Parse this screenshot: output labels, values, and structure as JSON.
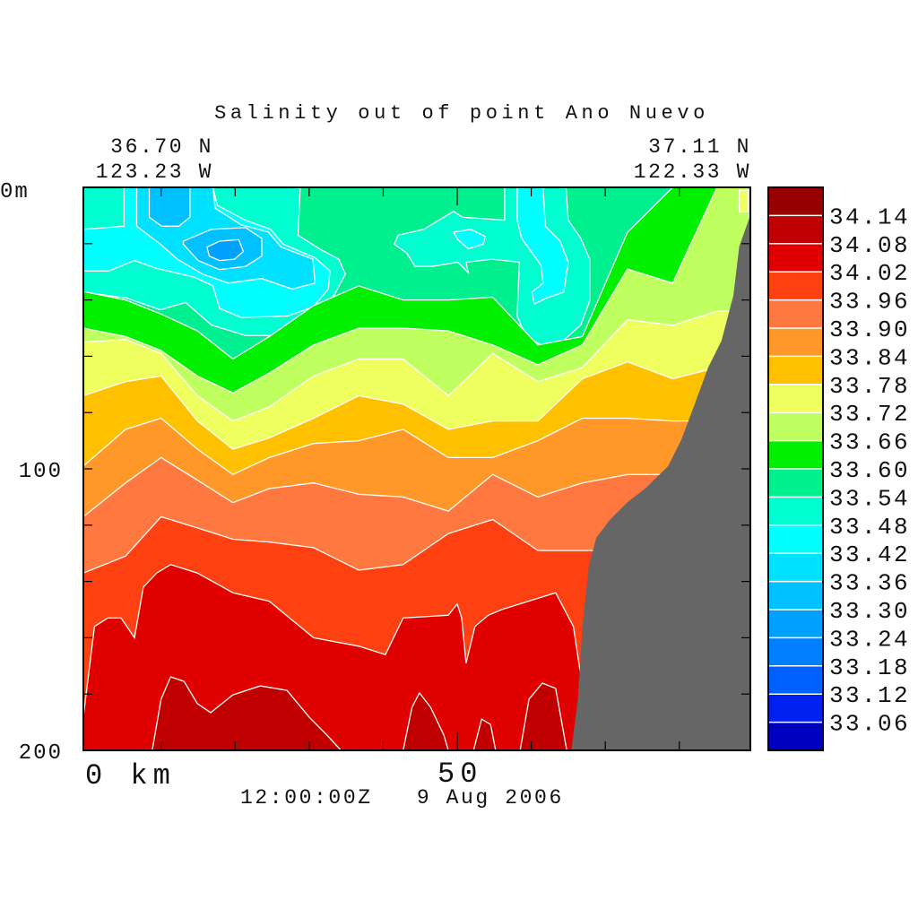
{
  "chart_data": {
    "type": "contour",
    "title": "Salinity out of point Ano Nuevo",
    "corner_left": {
      "lat": "36.70 N",
      "lon": "123.23 W"
    },
    "corner_right": {
      "lat": "37.11 N",
      "lon": "122.33 W"
    },
    "y_axis": {
      "top_label": "0m",
      "mid_label": "100",
      "bottom_label": "200",
      "ylim": [
        0,
        200
      ],
      "tick_step": 20,
      "inverted": true
    },
    "x_axis": {
      "left_label": "0 km",
      "mid_label": "50",
      "xlim": [
        -0.5,
        89.6
      ],
      "tick_step": 10,
      "major_tick": 50
    },
    "timestamp": "12:00:00Z   9 Aug 2006",
    "colorbar": {
      "labels": [
        "34.14",
        "34.08",
        "34.02",
        "33.96",
        "33.90",
        "33.84",
        "33.78",
        "33.72",
        "33.66",
        "33.60",
        "33.54",
        "33.48",
        "33.42",
        "33.36",
        "33.30",
        "33.24",
        "33.18",
        "33.12",
        "33.06"
      ],
      "colors": [
        "#980000",
        "#c00000",
        "#e00000",
        "#ff4010",
        "#ff7840",
        "#ff9828",
        "#ffc000",
        "#f0ff60",
        "#c0ff60",
        "#00f000",
        "#00f090",
        "#00ffd0",
        "#00ffff",
        "#00e0ff",
        "#00c0ff",
        "#00a0ff",
        "#0080ff",
        "#0060ff",
        "#0020f0",
        "#0000c0"
      ]
    },
    "background_level": "33.54",
    "level_colors": {
      "33.24": "#00a0ff",
      "33.30": "#00c0ff",
      "33.36": "#00e0ff",
      "33.42": "#00ffff",
      "33.48": "#00ffd0",
      "33.54": "#00f090",
      "33.60": "#00f000",
      "33.66": "#c0ff60",
      "33.72": "#f0ff60",
      "33.78": "#ffc000",
      "33.84": "#ff9828",
      "33.90": "#ff7840",
      "33.96": "#ff4010",
      "34.02": "#e00000",
      "34.08": "#c00000"
    },
    "layers": [
      {
        "level": "33.60",
        "x": [
          -0.5,
          5.2,
          10,
          14.9,
          19.7,
          24.6,
          30.6,
          36.7,
          42.7,
          48.8,
          54.8,
          60.9,
          66.9,
          73,
          79.1,
          85.1,
          89.6
        ],
        "depth": [
          37,
          40,
          45,
          51,
          61,
          53,
          42,
          35,
          40,
          40,
          39,
          56,
          53,
          16,
          0,
          0,
          0
        ]
      },
      {
        "level": "33.66",
        "x": [
          -0.5,
          5.2,
          10,
          14.9,
          19.7,
          24.6,
          30.6,
          36.7,
          42.7,
          48.8,
          54.8,
          60.9,
          66.9,
          73,
          79.1,
          85.1,
          89.6
        ],
        "depth": [
          50,
          53,
          58,
          67,
          73,
          66,
          56,
          50,
          50,
          51,
          56,
          63,
          56,
          29,
          34,
          0,
          0
        ]
      },
      {
        "level": "33.72",
        "x": [
          -0.5,
          5.2,
          10,
          14.9,
          19.7,
          24.6,
          30.6,
          36.7,
          42.7,
          48.8,
          54.8,
          60.9,
          66.9,
          73,
          79.1,
          85.1,
          89.6
        ],
        "depth": [
          55,
          54,
          59,
          74,
          83,
          78,
          67,
          61,
          61,
          74,
          59,
          69,
          64,
          47,
          49,
          44,
          44
        ]
      },
      {
        "level": "33.78",
        "x": [
          -0.5,
          5.2,
          10,
          14.9,
          19.7,
          24.6,
          30.6,
          36.7,
          42.7,
          48.8,
          54.8,
          60.9,
          66.9,
          73,
          79.1,
          85.1,
          89.6
        ],
        "depth": [
          74,
          69,
          67,
          83,
          93,
          89,
          82,
          74,
          77,
          86,
          83,
          83,
          68,
          62,
          68,
          64,
          64
        ]
      },
      {
        "level": "33.84",
        "x": [
          -0.5,
          5.2,
          10,
          14.9,
          19.7,
          24.6,
          30.6,
          36.7,
          42.7,
          48.8,
          54.8,
          60.9,
          66.9,
          73,
          79.1,
          85.1,
          89.6
        ],
        "depth": [
          99,
          86,
          82,
          93,
          102,
          96,
          91,
          90,
          86,
          96,
          96,
          90,
          82,
          82,
          83,
          83,
          83
        ]
      },
      {
        "level": "33.90",
        "x": [
          -0.5,
          5.2,
          10,
          14.9,
          19.7,
          24.6,
          30.6,
          36.7,
          42.7,
          48.8,
          54.8,
          60.9,
          66.9,
          73,
          79.1,
          85.1,
          89.6
        ],
        "depth": [
          117,
          105,
          96,
          104,
          112,
          107,
          105,
          109,
          110,
          115,
          102,
          110,
          105,
          102,
          102,
          102,
          102
        ]
      },
      {
        "level": "33.96",
        "x": [
          -0.5,
          5.2,
          10,
          14.9,
          19.7,
          24.6,
          30.6,
          36.7,
          42.7,
          48.8,
          54.8,
          60.9,
          66.9,
          73,
          79.1,
          85.1,
          89.6
        ],
        "depth": [
          137,
          131,
          117,
          121,
          125,
          126,
          128,
          136,
          134,
          123,
          118,
          129,
          129,
          129,
          129,
          129,
          129
        ]
      },
      {
        "level": "34.02",
        "x": [
          -0.5,
          1.0,
          2.8,
          4.6,
          6.4,
          7.6,
          9.4,
          11.3,
          14.9,
          19.7,
          24.6,
          30.6,
          36.7,
          40.3,
          42.7,
          48.8,
          50.0,
          50.6,
          51.2,
          52.4,
          54.2,
          56.0,
          60.9,
          63.3,
          65.7,
          68.2
        ],
        "depth": [
          188,
          156,
          153,
          153,
          160,
          142,
          137,
          134,
          137,
          144,
          147,
          160,
          163,
          166,
          153,
          152,
          148,
          153,
          169,
          156,
          152,
          150,
          146,
          144,
          156,
          200
        ]
      }
    ],
    "regions": [
      {
        "level": "33.48",
        "points": [
          [
            -0.5,
            0
          ],
          [
            28.8,
            0
          ],
          [
            28.5,
            17
          ],
          [
            31.7,
            22.3
          ],
          [
            34.0,
            25.5
          ],
          [
            34.9,
            30.8
          ],
          [
            33.4,
            38.2
          ],
          [
            30.8,
            46.7
          ],
          [
            27.7,
            52.6
          ],
          [
            21.4,
            52.6
          ],
          [
            16.8,
            48.9
          ],
          [
            13.3,
            40.9
          ],
          [
            9.9,
            43.5
          ],
          [
            5.3,
            39.3
          ],
          [
            -0.5,
            37.2
          ]
        ]
      },
      {
        "level": "33.48",
        "points": [
          [
            56.4,
            0
          ],
          [
            64.7,
            0
          ],
          [
            65.0,
            11.7
          ],
          [
            66.7,
            18.1
          ],
          [
            67.9,
            25.5
          ],
          [
            67.9,
            40.4
          ],
          [
            66.7,
            48.9
          ],
          [
            64.4,
            54.2
          ],
          [
            61.6,
            56.3
          ],
          [
            59.3,
            53.1
          ],
          [
            58.1,
            45.7
          ],
          [
            58.4,
            26.6
          ],
          [
            54.7,
            25.5
          ],
          [
            51.2,
            26.6
          ],
          [
            51.5,
            30.3
          ],
          [
            50.1,
            26.6
          ],
          [
            46.6,
            28.1
          ],
          [
            44.3,
            28.1
          ],
          [
            43.2,
            23.4
          ],
          [
            41.5,
            20.2
          ],
          [
            42.0,
            17.0
          ],
          [
            45.5,
            14.9
          ],
          [
            49.5,
            8.5
          ],
          [
            50.7,
            10.6
          ],
          [
            56.4,
            11.7
          ]
        ]
      },
      {
        "level": "33.42",
        "points": [
          [
            -0.5,
            14.9
          ],
          [
            5.0,
            13.8
          ],
          [
            5.0,
            0
          ],
          [
            17.0,
            0
          ],
          [
            17.6,
            6.4
          ],
          [
            21.4,
            11.7
          ],
          [
            24.8,
            14.9
          ],
          [
            26.5,
            20.2
          ],
          [
            30.8,
            25.0
          ],
          [
            32.8,
            29.7
          ],
          [
            32.6,
            36.1
          ],
          [
            30.5,
            42.5
          ],
          [
            27.1,
            45.7
          ],
          [
            20.8,
            46.2
          ],
          [
            17.9,
            43.0
          ],
          [
            17.0,
            35.0
          ],
          [
            14.5,
            31.9
          ],
          [
            9.3,
            28.7
          ],
          [
            6.4,
            26.0
          ],
          [
            2.9,
            29.7
          ],
          [
            -0.5,
            29.7
          ]
        ]
      },
      {
        "level": "33.42",
        "points": [
          [
            58.1,
            0
          ],
          [
            61.6,
            0
          ],
          [
            61.9,
            13.8
          ],
          [
            63.9,
            19.1
          ],
          [
            65.0,
            26.6
          ],
          [
            64.4,
            37.2
          ],
          [
            62.1,
            39.3
          ],
          [
            60.4,
            41.4
          ],
          [
            60.1,
            37.2
          ],
          [
            61.6,
            34.0
          ],
          [
            61.3,
            27.6
          ],
          [
            58.7,
            18.1
          ],
          [
            58.1,
            11.7
          ]
        ]
      },
      {
        "level": "33.42",
        "points": [
          [
            49.5,
            15.9
          ],
          [
            51.8,
            14.9
          ],
          [
            53.8,
            17.5
          ],
          [
            53.5,
            20.2
          ],
          [
            51.5,
            21.8
          ],
          [
            50.1,
            18.6
          ]
        ]
      },
      {
        "level": "33.36",
        "points": [
          [
            6.7,
            0
          ],
          [
            17.0,
            0
          ],
          [
            17.3,
            7.4
          ],
          [
            20.8,
            13.3
          ],
          [
            24.5,
            15.9
          ],
          [
            26.2,
            21.2
          ],
          [
            30.5,
            25.5
          ],
          [
            30.8,
            34.0
          ],
          [
            27.7,
            36.1
          ],
          [
            23.6,
            32.4
          ],
          [
            19.1,
            34.0
          ],
          [
            15.6,
            30.8
          ],
          [
            12.2,
            25.5
          ],
          [
            9.9,
            20.2
          ],
          [
            6.7,
            13.8
          ]
        ]
      },
      {
        "level": "33.30",
        "points": [
          [
            8.4,
            0
          ],
          [
            13.9,
            0
          ],
          [
            13.9,
            10.6
          ],
          [
            12.4,
            13.8
          ],
          [
            10.1,
            13.8
          ],
          [
            8.4,
            10.6
          ]
        ]
      },
      {
        "level": "33.30",
        "points": [
          [
            13.0,
            19.1
          ],
          [
            16.8,
            14.9
          ],
          [
            21.4,
            14.3
          ],
          [
            23.6,
            18.1
          ],
          [
            23.6,
            24.4
          ],
          [
            21.4,
            28.1
          ],
          [
            17.9,
            29.2
          ],
          [
            15.0,
            26.0
          ],
          [
            13.0,
            20.2
          ]
        ]
      },
      {
        "level": "33.24",
        "points": [
          [
            16.2,
            21.2
          ],
          [
            17.9,
            19.1
          ],
          [
            20.5,
            18.6
          ],
          [
            21.1,
            22.8
          ],
          [
            19.9,
            25.5
          ],
          [
            17.9,
            26.0
          ],
          [
            16.5,
            24.4
          ]
        ]
      },
      {
        "level": "33.72",
        "points": [
          [
            88.1,
            1
          ],
          [
            89.3,
            1
          ],
          [
            89.3,
            8.6
          ],
          [
            88.1,
            8.6
          ]
        ]
      },
      {
        "level": "34.08",
        "points": [
          [
            8.8,
            200
          ],
          [
            10.0,
            181.8
          ],
          [
            11.3,
            173.9
          ],
          [
            13.1,
            175.5
          ],
          [
            14.9,
            183.4
          ],
          [
            16.7,
            186.6
          ],
          [
            19.7,
            180.3
          ],
          [
            23.4,
            177.1
          ],
          [
            27.0,
            178.7
          ],
          [
            30.0,
            188.2
          ],
          [
            32.4,
            194.6
          ],
          [
            34.3,
            200
          ]
        ]
      },
      {
        "level": "34.08",
        "points": [
          [
            42.7,
            200
          ],
          [
            43.9,
            184.7
          ],
          [
            44.9,
            179.6
          ],
          [
            46.4,
            184.7
          ],
          [
            48.2,
            194.6
          ],
          [
            48.8,
            200
          ]
        ]
      },
      {
        "level": "34.08",
        "points": [
          [
            52.2,
            200
          ],
          [
            53.3,
            188.9
          ],
          [
            54.5,
            190.8
          ],
          [
            55.2,
            200
          ]
        ]
      },
      {
        "level": "34.08",
        "points": [
          [
            58.5,
            200
          ],
          [
            59.7,
            181.8
          ],
          [
            61.5,
            176.1
          ],
          [
            63.3,
            178.0
          ],
          [
            64.8,
            200
          ]
        ]
      }
    ],
    "bathymetry": {
      "color": "#666666",
      "points": [
        [
          89.6,
          9.9
        ],
        [
          88.1,
          21
        ],
        [
          87.3,
          38.5
        ],
        [
          85.7,
          54.5
        ],
        [
          83.9,
          64
        ],
        [
          82.1,
          76.8
        ],
        [
          80.3,
          89.5
        ],
        [
          78.5,
          99
        ],
        [
          75.4,
          107
        ],
        [
          73.0,
          111.8
        ],
        [
          70.6,
          118.2
        ],
        [
          68.8,
          124.5
        ],
        [
          67.8,
          134.1
        ],
        [
          66.9,
          156.4
        ],
        [
          66.3,
          181.8
        ],
        [
          65.4,
          200
        ],
        [
          89.6,
          200
        ]
      ]
    },
    "contour_line_color": "#ffffff"
  }
}
